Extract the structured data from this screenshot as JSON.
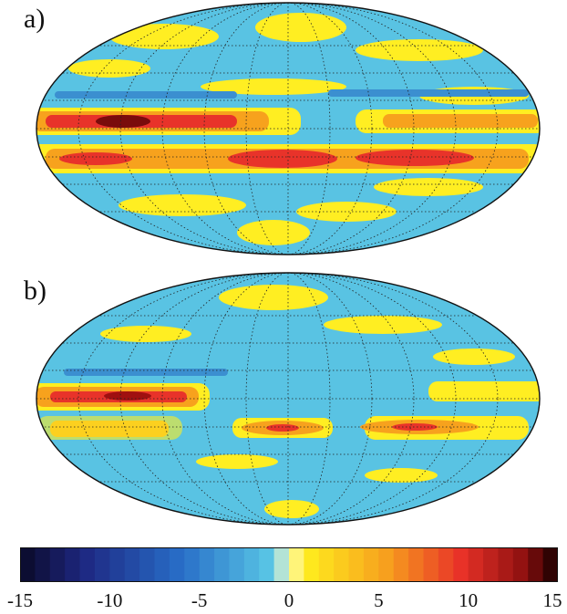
{
  "panels": [
    {
      "label": "a)"
    },
    {
      "label": "b)"
    }
  ],
  "colorbar": {
    "ticks": [
      "-15",
      "-10",
      "-5",
      "0",
      "5",
      "10",
      "15"
    ],
    "min": -15,
    "max": 15,
    "levels": 36
  },
  "colors": {
    "ocean_blue": "#59c3e3",
    "yellow": "#ffee22",
    "orange": "#f7a21d",
    "red": "#e8332a",
    "dark_red": "#a01010"
  }
}
